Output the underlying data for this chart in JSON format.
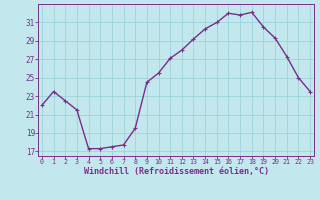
{
  "x": [
    0,
    1,
    2,
    3,
    4,
    5,
    6,
    7,
    8,
    9,
    10,
    11,
    12,
    13,
    14,
    15,
    16,
    17,
    18,
    19,
    20,
    21,
    22,
    23
  ],
  "y": [
    22.0,
    23.5,
    22.5,
    21.5,
    17.3,
    17.3,
    17.5,
    17.7,
    19.5,
    24.5,
    25.5,
    27.1,
    28.0,
    29.2,
    30.3,
    31.0,
    32.0,
    31.8,
    32.1,
    30.5,
    29.3,
    27.3,
    25.0,
    23.5
  ],
  "line_color": "#7B2D8B",
  "marker": "D",
  "marker_size": 2.0,
  "bg_color": "#C2E8EE",
  "grid_color": "#9DD4DA",
  "xlabel": "Windchill (Refroidissement éolien,°C)",
  "xlabel_color": "#7B2D8B",
  "tick_color": "#7B2D8B",
  "spine_color": "#7B2D8B",
  "ylim": [
    16.5,
    33.0
  ],
  "yticks": [
    17,
    19,
    21,
    23,
    25,
    27,
    29,
    31
  ],
  "xticks": [
    0,
    1,
    2,
    3,
    4,
    5,
    6,
    7,
    8,
    9,
    10,
    11,
    12,
    13,
    14,
    15,
    16,
    17,
    18,
    19,
    20,
    21,
    22,
    23
  ],
  "xlim": [
    -0.3,
    23.3
  ],
  "line_width": 1.0
}
